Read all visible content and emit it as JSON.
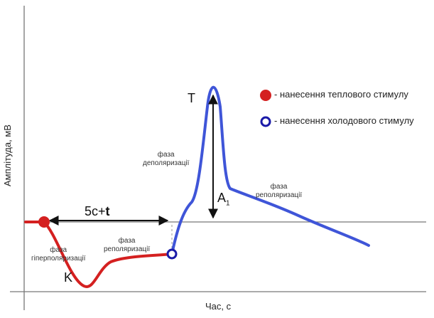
{
  "chart_data": {
    "type": "line",
    "xlabel": "Час, с",
    "ylabel": "Амплітуда, мВ",
    "grid": false,
    "legend_position": "top-right",
    "legend": [
      {
        "marker": "filled-circle",
        "color": "#d42020",
        "label": "- нанесення теплового стимулу"
      },
      {
        "marker": "hollow-circle",
        "color": "#1a1aa8",
        "label": "- нанесення холодового стимулу"
      }
    ],
    "series": [
      {
        "color": "#d42020",
        "segment": "heat-response"
      },
      {
        "color": "#3f55d8",
        "segment": "cold-response"
      }
    ],
    "annotations": {
      "interval": "5с+",
      "interval_bold": "t",
      "peak_T": "T",
      "trough_K": "K",
      "amplitude": "A",
      "amplitude_sub": "1",
      "phase_hyperpolarization": [
        "фаза",
        "гіперполяризації"
      ],
      "phase_repolarization_1": [
        "фаза",
        "реполяризації"
      ],
      "phase_depolarization": [
        "фаза",
        "деполяризації"
      ],
      "phase_repolarization_2": [
        "фаза",
        "реполяризації"
      ]
    },
    "colors": {
      "heat": "#d42020",
      "cold_marker": "#1a1aa8",
      "cold_line": "#3f55d8",
      "axis": "#777777",
      "arrows": "#111111"
    }
  }
}
